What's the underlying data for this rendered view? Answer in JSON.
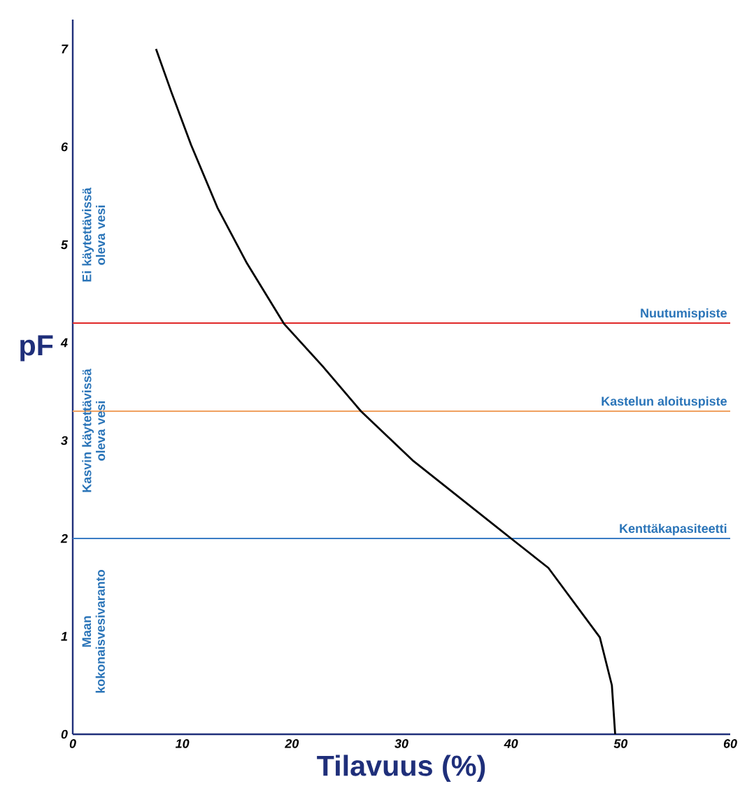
{
  "chart_data": {
    "type": "line",
    "xlabel": "**Tilavuus** (%)",
    "ylabel": "pF",
    "x": [
      7.6,
      9.0,
      10.8,
      13.2,
      15.9,
      19.3,
      22.8,
      26.3,
      31.1,
      40.0,
      43.4,
      48.1,
      49.2,
      49.5
    ],
    "series": [
      {
        "color": "#000000",
        "values": [
          7.0,
          6.56,
          6.02,
          5.38,
          4.81,
          4.19,
          3.76,
          3.3,
          2.79,
          2.0,
          1.7,
          0.99,
          0.5,
          0.0
        ]
      }
    ],
    "xlim": [
      0,
      60
    ],
    "ylim": [
      0,
      7.3
    ],
    "xticks": [
      0,
      10,
      20,
      30,
      40,
      50,
      60
    ],
    "yticks": [
      0,
      1,
      2,
      3,
      4,
      5,
      6,
      7
    ],
    "ref_lines": [
      {
        "axis": "y",
        "value": 4.2,
        "label": "Nuutumispiste",
        "color": "#e02828"
      },
      {
        "axis": "y",
        "value": 3.3,
        "label": "Kastelun aloituspiste",
        "color": "#f0a060"
      },
      {
        "axis": "y",
        "value": 2.0,
        "label": "Kenttäkapasiteetti",
        "color": "#3a7cc4"
      }
    ],
    "annotations": [
      "Ei käytettävissä oleva vesi",
      "Kasvin käytettävissä oleva vesi",
      "Maan kokonaisvesivaranto"
    ],
    "grid": false,
    "marker": "none",
    "line_style": "solid"
  }
}
